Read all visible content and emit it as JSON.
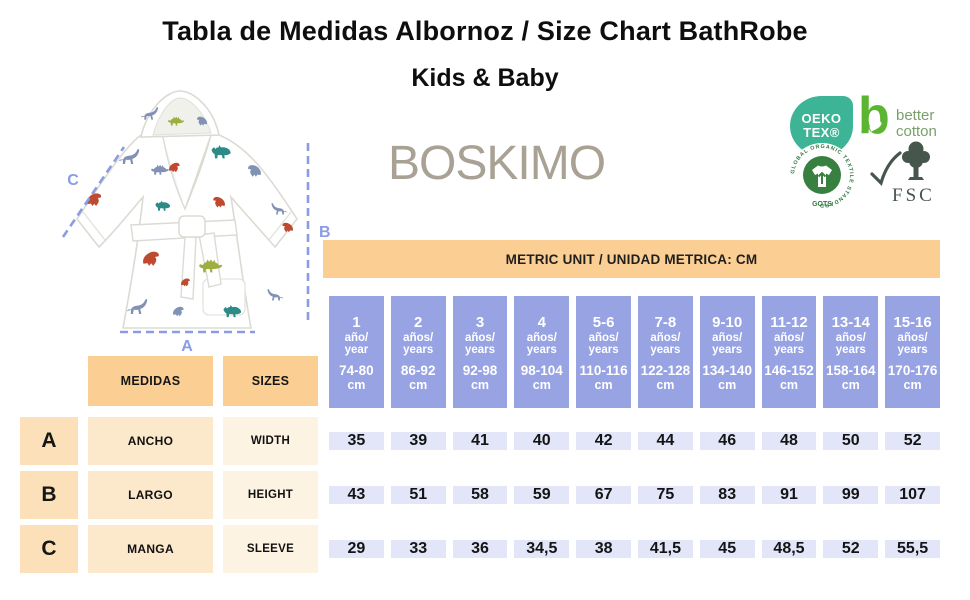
{
  "title": "Tabla de Medidas Albornoz / Size Chart BathRobe",
  "subtitle": "Kids & Baby",
  "brand": "BOSKIMO",
  "diagram": {
    "label_a": "A",
    "label_b": "B",
    "label_c": "C"
  },
  "badges": {
    "oekotex": {
      "line1": "OEKO",
      "line2": "TEX®"
    },
    "better_cotton": {
      "mark": "b",
      "line1": "better",
      "line2": "cotton"
    },
    "gots": {
      "ring_text": "GLOBAL ORGANIC TEXTILE STANDARD",
      "label": "GOTS"
    },
    "fsc": {
      "label": "FSC"
    }
  },
  "colors": {
    "header_blue": "#98a3e3",
    "value_cell_blue": "#e3e6f8",
    "orange": "#fbcf93",
    "peach_dark": "#fbe0b9",
    "peach_mid": "#fce9cc",
    "peach_light": "#fdf3e3",
    "dimension_blue": "#8b9ce4",
    "oeko_teal": "#3eb497",
    "bc_green": "#5cb531",
    "gots_green": "#37803f",
    "fsc_gray_green": "#47564c",
    "brand_gray": "#a9a294"
  },
  "table": {
    "unit_header": "METRIC UNIT / UNIDAD METRICA: CM",
    "row_header_es": "MEDIDAS",
    "row_header_en": "SIZES",
    "columns": [
      {
        "num": "1",
        "es": "año/",
        "en": "year",
        "range": "74-80",
        "unit": "cm"
      },
      {
        "num": "2",
        "es": "años/",
        "en": "years",
        "range": "86-92",
        "unit": "cm"
      },
      {
        "num": "3",
        "es": "años/",
        "en": "years",
        "range": "92-98",
        "unit": "cm"
      },
      {
        "num": "4",
        "es": "años/",
        "en": "years",
        "range": "98-104",
        "unit": "cm"
      },
      {
        "num": "5-6",
        "es": "años/",
        "en": "years",
        "range": "110-116",
        "unit": "cm"
      },
      {
        "num": "7-8",
        "es": "años/",
        "en": "years",
        "range": "122-128",
        "unit": "cm"
      },
      {
        "num": "9-10",
        "es": "años/",
        "en": "years",
        "range": "134-140",
        "unit": "cm"
      },
      {
        "num": "11-12",
        "es": "años/",
        "en": "years",
        "range": "146-152",
        "unit": "cm"
      },
      {
        "num": "13-14",
        "es": "años/",
        "en": "years",
        "range": "158-164",
        "unit": "cm"
      },
      {
        "num": "15-16",
        "es": "años/",
        "en": "years",
        "range": "170-176",
        "unit": "cm"
      }
    ],
    "rows": [
      {
        "letter": "A",
        "es": "ANCHO",
        "en": "WIDTH",
        "values": [
          "35",
          "39",
          "41",
          "40",
          "42",
          "44",
          "46",
          "48",
          "50",
          "52"
        ]
      },
      {
        "letter": "B",
        "es": "LARGO",
        "en": "HEIGHT",
        "values": [
          "43",
          "51",
          "58",
          "59",
          "67",
          "75",
          "83",
          "91",
          "99",
          "107"
        ]
      },
      {
        "letter": "C",
        "es": "MANGA",
        "en": "SLEEVE",
        "values": [
          "29",
          "33",
          "36",
          "34,5",
          "38",
          "41,5",
          "45",
          "48,5",
          "52",
          "55,5"
        ]
      }
    ]
  },
  "chart_data": {
    "type": "table",
    "title": "Tabla de Medidas Albornoz / Size Chart BathRobe — Kids & Baby",
    "unit": "cm",
    "categories": [
      "1 año/year 74-80 cm",
      "2 años/years 86-92 cm",
      "3 años/years 92-98 cm",
      "4 años/years 98-104 cm",
      "5-6 años/years 110-116 cm",
      "7-8 años/years 122-128 cm",
      "9-10 años/years 134-140 cm",
      "11-12 años/years 146-152 cm",
      "13-14 años/years 158-164 cm",
      "15-16 años/years 170-176 cm"
    ],
    "series": [
      {
        "name": "A ANCHO / WIDTH",
        "values": [
          35,
          39,
          41,
          40,
          42,
          44,
          46,
          48,
          50,
          52
        ]
      },
      {
        "name": "B LARGO / HEIGHT",
        "values": [
          43,
          51,
          58,
          59,
          67,
          75,
          83,
          91,
          99,
          107
        ]
      },
      {
        "name": "C MANGA / SLEEVE",
        "values": [
          29,
          33,
          36,
          34.5,
          38,
          41.5,
          45,
          48.5,
          52,
          55.5
        ]
      }
    ]
  }
}
